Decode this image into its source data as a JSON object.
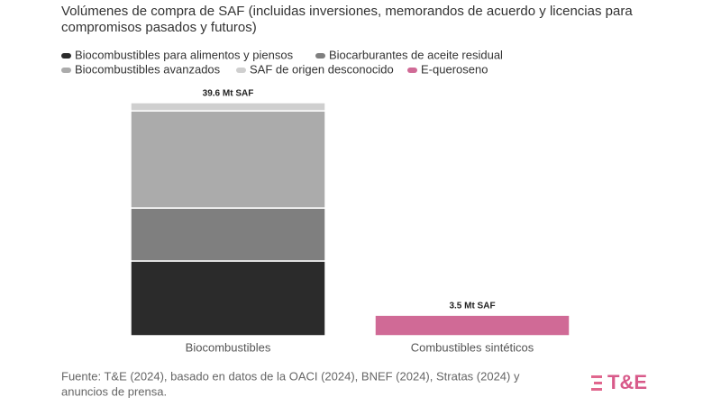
{
  "chart_data": {
    "type": "stacked-bar",
    "title": "Volúmenes de compra de SAF (incluidas inversiones, memorandos de acuerdo y licencias para",
    "title_line2": "compromisos pasados y futuros)",
    "categories": [
      "Biocombustibles",
      "Combustibles sintéticos"
    ],
    "series": [
      {
        "name": "Biocombustibles para alimentos y piensos",
        "color": "#2b2b2b",
        "values": [
          12.7,
          0
        ]
      },
      {
        "name": "Biocarburantes de aceite residual",
        "color": "#7f7f7f",
        "values": [
          9.0,
          0
        ]
      },
      {
        "name": "Biocombustibles avanzados",
        "color": "#ababab",
        "values": [
          16.5,
          0
        ]
      },
      {
        "name": "SAF de origen desconocido",
        "color": "#cfcfcf",
        "values": [
          1.4,
          0
        ]
      },
      {
        "name": "E-queroseno",
        "color": "#d06a96",
        "values": [
          0,
          3.5
        ]
      }
    ],
    "totals": [
      39.6,
      3.5
    ],
    "total_labels": [
      "39.6 Mt SAF",
      "3.5 Mt SAF"
    ],
    "source": "Fuente: T&E (2024), basado en datos de la OACI (2024), BNEF (2024), Stratas (2024) y",
    "source_line2": "anuncios de prensa.",
    "logo": "T&E"
  }
}
